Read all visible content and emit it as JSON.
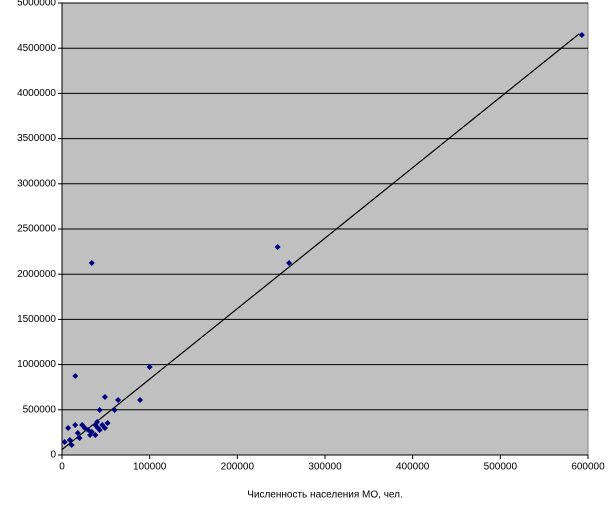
{
  "chart_data": {
    "type": "scatter",
    "x_label": "Численность населения МО, чел.",
    "x": [
      593000,
      246000,
      259000,
      34000,
      100000,
      15000,
      89000,
      64000,
      49000,
      60000,
      43000,
      7000,
      9000,
      3000,
      11000,
      18000,
      23000,
      26000,
      20000,
      30000,
      34000,
      38000,
      40000,
      41000,
      46000,
      52000,
      32000,
      15000,
      43000,
      49000,
      38000
    ],
    "values": [
      4646000,
      2301000,
      2124000,
      2124000,
      973000,
      874000,
      608000,
      608000,
      642000,
      498000,
      498000,
      299000,
      166000,
      144000,
      111000,
      243000,
      332000,
      299000,
      188000,
      277000,
      254000,
      332000,
      365000,
      299000,
      332000,
      354000,
      221000,
      332000,
      277000,
      299000,
      221000
    ],
    "color": "#000080",
    "trendline": {
      "x": [
        0,
        590000
      ],
      "y": [
        60000,
        4660000
      ],
      "color": "#000000"
    },
    "xlim": [
      0,
      600000
    ],
    "ylim": [
      0,
      5000000
    ],
    "xticks": [
      0,
      100000,
      200000,
      300000,
      400000,
      500000,
      600000
    ],
    "yticks": [
      0,
      500000,
      1000000,
      1500000,
      2000000,
      2500000,
      3000000,
      3500000,
      4000000,
      4500000,
      5000000
    ],
    "grid": true,
    "background": "#c0c0c0"
  }
}
